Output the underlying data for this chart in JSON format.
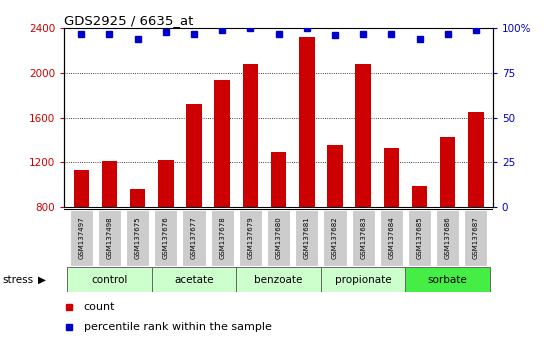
{
  "title": "GDS2925 / 6635_at",
  "samples": [
    "GSM137497",
    "GSM137498",
    "GSM137675",
    "GSM137676",
    "GSM137677",
    "GSM137678",
    "GSM137679",
    "GSM137680",
    "GSM137681",
    "GSM137682",
    "GSM137683",
    "GSM137684",
    "GSM137685",
    "GSM137686",
    "GSM137687"
  ],
  "counts": [
    1130,
    1210,
    960,
    1220,
    1720,
    1940,
    2080,
    1290,
    2320,
    1360,
    2080,
    1330,
    990,
    1430,
    1650
  ],
  "percentiles": [
    97,
    97,
    94,
    98,
    97,
    99,
    100,
    97,
    100,
    96,
    97,
    97,
    94,
    97,
    99
  ],
  "groups": [
    {
      "label": "control",
      "start": 0,
      "end": 3,
      "color": "#ccffcc"
    },
    {
      "label": "acetate",
      "start": 3,
      "end": 6,
      "color": "#ccffcc"
    },
    {
      "label": "benzoate",
      "start": 6,
      "end": 9,
      "color": "#ccffcc"
    },
    {
      "label": "propionate",
      "start": 9,
      "end": 12,
      "color": "#ccffcc"
    },
    {
      "label": "sorbate",
      "start": 12,
      "end": 15,
      "color": "#44ee44"
    }
  ],
  "bar_color": "#cc0000",
  "scatter_color": "#0000cc",
  "ylim_left": [
    800,
    2400
  ],
  "ylim_right": [
    0,
    100
  ],
  "yticks_left": [
    800,
    1200,
    1600,
    2000,
    2400
  ],
  "yticks_right": [
    0,
    25,
    50,
    75,
    100
  ],
  "grid_values": [
    1200,
    1600,
    2000
  ],
  "tick_label_color_left": "#cc0000",
  "tick_label_color_right": "#0000cc",
  "legend_count_label": "count",
  "legend_percentile_label": "percentile rank within the sample",
  "stress_label": "stress",
  "sample_box_color": "#cccccc",
  "group_border_color": "#666666"
}
